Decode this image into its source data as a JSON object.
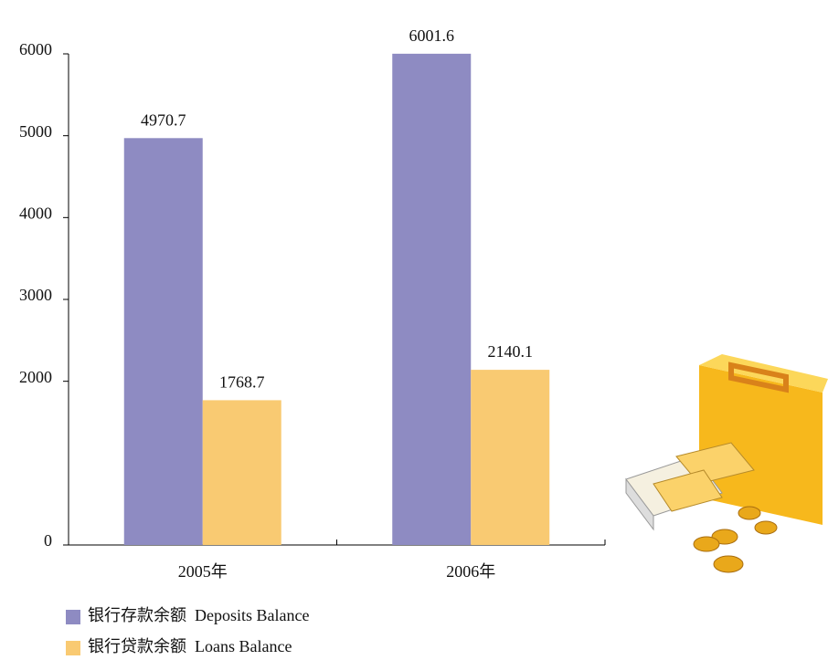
{
  "chart_data": {
    "type": "bar",
    "categories": [
      "2005年",
      "2006年"
    ],
    "series": [
      {
        "name": "银行存款余额  Deposits Balance",
        "color": "#8e8bc2",
        "values": [
          4970.7,
          6001.6
        ]
      },
      {
        "name": "银行贷款余额  Loans Balance",
        "color": "#f9ca72",
        "values": [
          1768.7,
          2140.1
        ]
      }
    ],
    "ylim": [
      0,
      6000
    ],
    "yticks": [
      0,
      2000,
      3000,
      4000,
      5000,
      6000
    ],
    "grid": false,
    "legend": "bottom"
  }
}
